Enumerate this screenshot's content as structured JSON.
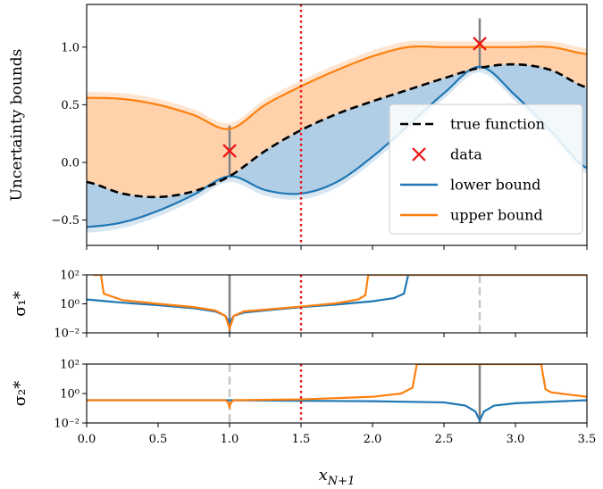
{
  "chart_data": [
    {
      "type": "line",
      "ylabel": "Uncertainty bounds",
      "xlim": [
        0.0,
        3.5
      ],
      "ylim": [
        -0.72,
        1.37
      ],
      "yticks": [
        "−0.5",
        "0.0",
        "0.5",
        "1.0"
      ],
      "ytick_values": [
        -0.5,
        0.0,
        0.5,
        1.0
      ],
      "vertical_marker_x": 1.5,
      "data_points": [
        {
          "x": 1.0,
          "y": 0.1
        },
        {
          "x": 2.75,
          "y": 1.03
        }
      ],
      "legend": {
        "placement": "lower-right",
        "entries": [
          {
            "label": "true function",
            "style": "dashed",
            "color": "#000000"
          },
          {
            "label": "data",
            "style": "marker-x",
            "color": "#ee1111"
          },
          {
            "label": "lower bound",
            "style": "line",
            "color": "#1f77b4"
          },
          {
            "label": "upper bound",
            "style": "line",
            "color": "#ff7f0e"
          }
        ]
      },
      "series": [
        {
          "name": "true function",
          "color": "#000000",
          "x": [
            0.0,
            0.25,
            0.5,
            0.75,
            1.0,
            1.25,
            1.5,
            1.75,
            2.0,
            2.25,
            2.5,
            2.75,
            3.0,
            3.25,
            3.5
          ],
          "y": [
            -0.17,
            -0.27,
            -0.3,
            -0.25,
            -0.12,
            0.1,
            0.28,
            0.42,
            0.53,
            0.63,
            0.73,
            0.82,
            0.85,
            0.8,
            0.65
          ]
        },
        {
          "name": "lower bound",
          "color": "#1f77b4",
          "x": [
            0.0,
            0.25,
            0.5,
            0.75,
            1.0,
            1.25,
            1.5,
            1.75,
            2.0,
            2.25,
            2.5,
            2.75,
            3.0,
            3.25,
            3.5
          ],
          "y": [
            -0.56,
            -0.52,
            -0.42,
            -0.28,
            -0.12,
            -0.24,
            -0.27,
            -0.17,
            0.05,
            0.32,
            0.6,
            0.83,
            0.58,
            0.27,
            -0.05
          ]
        },
        {
          "name": "upper bound",
          "color": "#ff7f0e",
          "x": [
            0.0,
            0.25,
            0.5,
            0.75,
            1.0,
            1.25,
            1.5,
            1.75,
            2.0,
            2.25,
            2.5,
            2.75,
            3.0,
            3.25,
            3.5
          ],
          "y": [
            0.56,
            0.55,
            0.5,
            0.41,
            0.29,
            0.5,
            0.66,
            0.8,
            0.92,
            1.0,
            1.0,
            1.0,
            1.0,
            1.0,
            0.94
          ]
        }
      ]
    },
    {
      "type": "line",
      "ylabel": "σ₁*",
      "yscale": "log",
      "xlim": [
        0.0,
        3.5
      ],
      "ylim": [
        0.01,
        100
      ],
      "yticks": [
        "10⁻²",
        "10⁰",
        "10²"
      ],
      "ytick_values": [
        0.01,
        1,
        100
      ],
      "vertical_marker_x": 1.5,
      "solid_gray_line_x": 1.0,
      "dashed_gray_line_x": 2.75,
      "series": [
        {
          "name": "lower bound",
          "color": "#1f77b4",
          "x": [
            0.0,
            0.25,
            0.5,
            0.75,
            0.9,
            0.97,
            1.0,
            1.03,
            1.1,
            1.25,
            1.5,
            1.75,
            2.0,
            2.15,
            2.22,
            2.25,
            2.5,
            3.0,
            3.5
          ],
          "y": [
            2.0,
            1.2,
            0.8,
            0.5,
            0.3,
            0.15,
            0.05,
            0.15,
            0.25,
            0.35,
            0.6,
            0.9,
            1.5,
            2.5,
            5.0,
            100,
            100,
            100,
            100
          ]
        },
        {
          "name": "upper bound",
          "color": "#ff7f0e",
          "x": [
            0.05,
            0.1,
            0.12,
            0.25,
            0.5,
            0.75,
            0.9,
            0.97,
            1.0,
            1.03,
            1.1,
            1.25,
            1.5,
            1.75,
            1.9,
            1.95,
            1.97,
            2.5,
            3.0,
            3.5
          ],
          "y": [
            100,
            100,
            5.0,
            1.8,
            1.0,
            0.6,
            0.35,
            0.15,
            0.02,
            0.15,
            0.3,
            0.4,
            0.65,
            1.1,
            2.0,
            4.0,
            100,
            100,
            100,
            100
          ]
        }
      ]
    },
    {
      "type": "line",
      "ylabel": "σ₂*",
      "xlabel": "x_{N+1}",
      "yscale": "log",
      "xlim": [
        0.0,
        3.5
      ],
      "ylim": [
        0.01,
        100
      ],
      "yticks": [
        "10⁻²",
        "10⁰",
        "10²"
      ],
      "ytick_values": [
        0.01,
        1,
        100
      ],
      "xticks": [
        "0.0",
        "0.5",
        "1.0",
        "1.5",
        "2.0",
        "2.5",
        "3.0",
        "3.5"
      ],
      "xtick_values": [
        0.0,
        0.5,
        1.0,
        1.5,
        2.0,
        2.5,
        3.0,
        3.5
      ],
      "vertical_marker_x": 1.5,
      "dashed_gray_line_x": 1.0,
      "solid_gray_line_x": 2.75,
      "series": [
        {
          "name": "lower bound",
          "color": "#1f77b4",
          "x": [
            0.0,
            0.5,
            1.0,
            1.5,
            2.0,
            2.5,
            2.65,
            2.72,
            2.75,
            2.78,
            2.85,
            3.0,
            3.5
          ],
          "y": [
            0.35,
            0.35,
            0.35,
            0.32,
            0.3,
            0.25,
            0.15,
            0.06,
            0.015,
            0.06,
            0.15,
            0.22,
            0.35
          ]
        },
        {
          "name": "upper bound",
          "color": "#ff7f0e",
          "x": [
            0.0,
            0.5,
            0.97,
            0.99,
            1.0,
            1.01,
            1.03,
            1.5,
            2.0,
            2.2,
            2.28,
            2.31,
            3.18,
            3.21,
            3.25,
            3.5
          ],
          "y": [
            0.35,
            0.35,
            0.35,
            0.25,
            0.12,
            0.25,
            0.35,
            0.4,
            0.6,
            1.0,
            2.5,
            100,
            100,
            2.0,
            1.2,
            0.6
          ]
        }
      ]
    }
  ]
}
